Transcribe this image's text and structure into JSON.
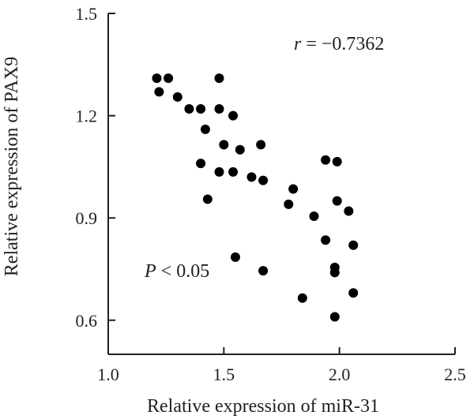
{
  "chart_data": {
    "type": "scatter",
    "xlabel": "Relative expression of miR-31",
    "ylabel": "Relative expression of PAX9",
    "xlim": [
      1.0,
      2.5
    ],
    "ylim": [
      0.5,
      1.5
    ],
    "xticks": [
      "1.0",
      "1.5",
      "2.0",
      "2.5"
    ],
    "yticks": [
      "0.6",
      "0.9",
      "1.2",
      "1.5"
    ],
    "grid": false,
    "annotations": {
      "r_symbol": "r",
      "r_value": " = −0.7362",
      "p_symbol": "P",
      "p_value": " < 0.05"
    },
    "points": [
      {
        "x": 1.21,
        "y": 1.31
      },
      {
        "x": 1.26,
        "y": 1.31
      },
      {
        "x": 1.22,
        "y": 1.27
      },
      {
        "x": 1.3,
        "y": 1.255
      },
      {
        "x": 1.48,
        "y": 1.31
      },
      {
        "x": 1.35,
        "y": 1.22
      },
      {
        "x": 1.4,
        "y": 1.22
      },
      {
        "x": 1.48,
        "y": 1.22
      },
      {
        "x": 1.54,
        "y": 1.2
      },
      {
        "x": 1.42,
        "y": 1.16
      },
      {
        "x": 1.5,
        "y": 1.115
      },
      {
        "x": 1.57,
        "y": 1.1
      },
      {
        "x": 1.66,
        "y": 1.115
      },
      {
        "x": 1.4,
        "y": 1.06
      },
      {
        "x": 1.48,
        "y": 1.035
      },
      {
        "x": 1.54,
        "y": 1.035
      },
      {
        "x": 1.62,
        "y": 1.02
      },
      {
        "x": 1.67,
        "y": 1.01
      },
      {
        "x": 1.43,
        "y": 0.955
      },
      {
        "x": 1.8,
        "y": 0.985
      },
      {
        "x": 1.78,
        "y": 0.94
      },
      {
        "x": 1.94,
        "y": 1.07
      },
      {
        "x": 1.99,
        "y": 1.065
      },
      {
        "x": 1.99,
        "y": 0.95
      },
      {
        "x": 2.04,
        "y": 0.92
      },
      {
        "x": 1.89,
        "y": 0.905
      },
      {
        "x": 1.94,
        "y": 0.835
      },
      {
        "x": 2.06,
        "y": 0.82
      },
      {
        "x": 1.55,
        "y": 0.785
      },
      {
        "x": 1.67,
        "y": 0.745
      },
      {
        "x": 1.98,
        "y": 0.755
      },
      {
        "x": 1.98,
        "y": 0.74
      },
      {
        "x": 1.84,
        "y": 0.665
      },
      {
        "x": 2.06,
        "y": 0.68
      },
      {
        "x": 1.98,
        "y": 0.61
      }
    ]
  }
}
